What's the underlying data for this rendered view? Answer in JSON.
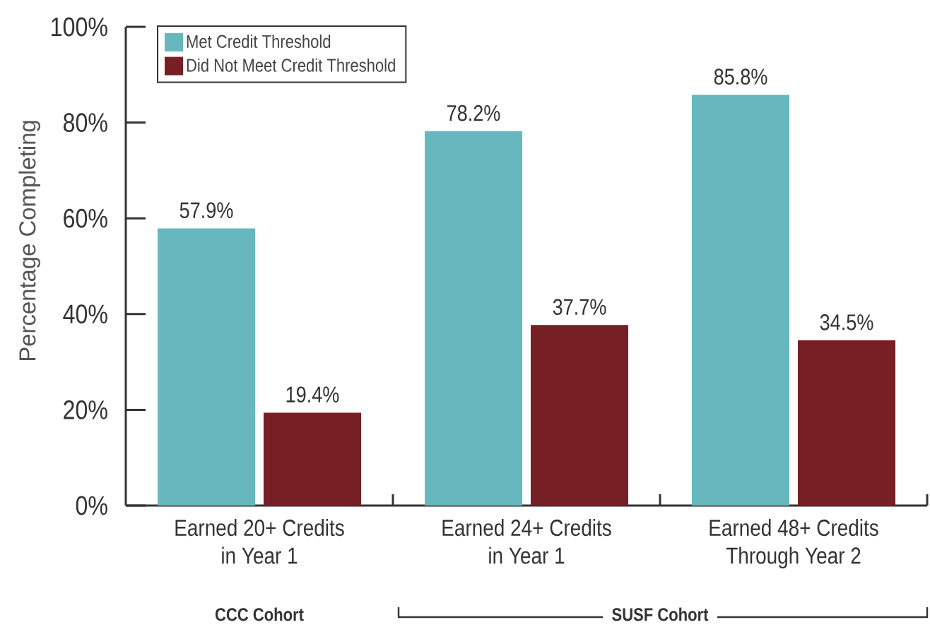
{
  "chart_data": {
    "type": "bar",
    "ylabel": "Percentage Completing",
    "categories": [
      "Earned 20+ Credits in Year 1",
      "Earned 24+ Credits in Year 1",
      "Earned 48+ Credits Through Year 2"
    ],
    "series": [
      {
        "name": "Met Credit Threshold",
        "color": "#66b8be",
        "values": [
          57.9,
          78.2,
          85.8
        ],
        "value_labels": [
          "57.9%",
          "78.2%",
          "85.8%"
        ]
      },
      {
        "name": "Did Not Meet Credit Threshold",
        "color": "#761f24",
        "values": [
          19.4,
          37.7,
          34.5
        ],
        "value_labels": [
          "19.4%",
          "37.7%",
          "34.5%"
        ]
      }
    ],
    "ylim": [
      0,
      100
    ],
    "yticks": [
      {
        "value": 0,
        "label": "0%"
      },
      {
        "value": 20,
        "label": "20%"
      },
      {
        "value": 40,
        "label": "40%"
      },
      {
        "value": 60,
        "label": "60%"
      },
      {
        "value": 80,
        "label": "80%"
      },
      {
        "value": 100,
        "label": "100%"
      }
    ],
    "legend": "top left",
    "annotations": [
      "CCC Cohort",
      "SUSF Cohort"
    ]
  }
}
